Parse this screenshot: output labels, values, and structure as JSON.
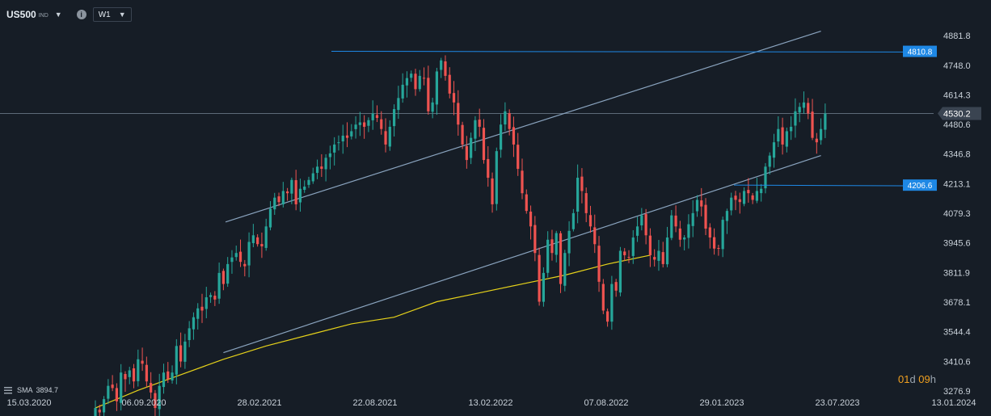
{
  "header": {
    "symbol": "US500",
    "symbol_type": "IND",
    "timeframe": "W1"
  },
  "sma_legend": {
    "label": "SMA",
    "value": "3894.7"
  },
  "countdown": {
    "days": "01",
    "days_unit": "d",
    "hours": "09",
    "hours_unit": "h"
  },
  "chart_data": {
    "type": "candlestick",
    "interval": "weekly",
    "x_tick_labels": [
      "15.03.2020",
      "06.09.2020",
      "28.02.2021",
      "22.08.2021",
      "13.02.2022",
      "07.08.2022",
      "29.01.2023",
      "23.07.2023",
      "13.01.2024"
    ],
    "y_tick_labels": [
      4881.8,
      4748.0,
      4614.3,
      4480.6,
      4346.8,
      4213.1,
      4079.3,
      3945.6,
      3811.9,
      3678.1,
      3544.4,
      3410.6,
      3276.9
    ],
    "ylim": [
      3255,
      4915
    ],
    "current_price": 4530.2,
    "horizontal_levels": [
      {
        "value": 4810.8,
        "label": "4810.8",
        "color": "#1e88e5"
      },
      {
        "value": 4206.6,
        "label": "4206.6",
        "color": "#1e88e5"
      }
    ],
    "colors": {
      "up": "#26a69a",
      "down": "#ef5350",
      "sma": "#e6d21a",
      "channel": "#8aa4bf",
      "level": "#1e88e5",
      "price_line": "#5d6a78"
    },
    "candles_close": [
      3200,
      3180,
      3240,
      3300,
      3290,
      3230,
      3360,
      3330,
      3370,
      3320,
      3420,
      3400,
      3320,
      3270,
      3200,
      3300,
      3360,
      3330,
      3360,
      3480,
      3410,
      3500,
      3560,
      3610,
      3650,
      3640,
      3700,
      3710,
      3690,
      3810,
      3760,
      3850,
      3880,
      3900,
      3860,
      3840,
      3950,
      3980,
      3940,
      3930,
      4020,
      4100,
      4150,
      4130,
      4180,
      4170,
      4230,
      4120,
      4190,
      4200,
      4230,
      4260,
      4290,
      4280,
      4330,
      4350,
      4390,
      4400,
      4430,
      4420,
      4450,
      4480,
      4490,
      4470,
      4500,
      4530,
      4510,
      4460,
      4390,
      4470,
      4550,
      4600,
      4660,
      4690,
      4710,
      4640,
      4700,
      4690,
      4540,
      4580,
      4720,
      4770,
      4700,
      4620,
      4580,
      4480,
      4390,
      4320,
      4420,
      4500,
      4470,
      4320,
      4240,
      4120,
      4360,
      4480,
      4540,
      4460,
      4390,
      4280,
      4170,
      4090,
      4020,
      3900,
      3680,
      3810,
      3960,
      3900,
      3990,
      3760,
      3900,
      4000,
      4080,
      4240,
      4180,
      4080,
      4020,
      3940,
      3770,
      3640,
      3590,
      3760,
      3730,
      3910,
      3890,
      3880,
      3970,
      4020,
      4070,
      3980,
      3890,
      3870,
      3910,
      3850,
      3970,
      4070,
      4020,
      3960,
      3970,
      4030,
      4080,
      4140,
      4110,
      4010,
      3970,
      3920,
      3920,
      4050,
      4090,
      4150,
      4140,
      4130,
      4180,
      4170,
      4140,
      4180,
      4190,
      4290,
      4340,
      4400,
      4460,
      4390,
      4450,
      4470,
      4540,
      4560,
      4580,
      4530,
      4420,
      4400,
      4460,
      4530
    ],
    "sma": [
      [
        0,
        3200
      ],
      [
        10,
        3280
      ],
      [
        20,
        3350
      ],
      [
        30,
        3420
      ],
      [
        40,
        3480
      ],
      [
        50,
        3530
      ],
      [
        60,
        3580
      ],
      [
        70,
        3610
      ],
      [
        80,
        3680
      ],
      [
        90,
        3720
      ],
      [
        100,
        3760
      ],
      [
        110,
        3800
      ],
      [
        120,
        3850
      ],
      [
        130,
        3890
      ]
    ],
    "channel_upper": {
      "from": [
        30.5,
        4040
      ],
      "to": [
        170,
        4902
      ]
    },
    "channel_lower": {
      "from": [
        30,
        3450
      ],
      "to": [
        170,
        4340
      ]
    }
  }
}
